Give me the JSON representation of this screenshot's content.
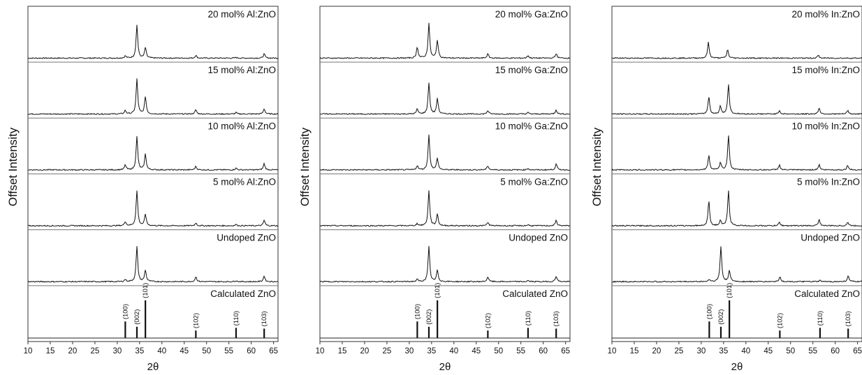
{
  "figure": {
    "shared": {
      "x_axis_label": "2θ",
      "y_axis_label": "Offset Intensity",
      "x_ticks": [
        10,
        15,
        20,
        25,
        30,
        35,
        40,
        45,
        50,
        55,
        60,
        65
      ],
      "x_range": [
        10,
        66
      ]
    },
    "panels": [
      {
        "traces": [
          {
            "label": "20 mol% Al:ZnO"
          },
          {
            "label": "15 mol% Al:ZnO"
          },
          {
            "label": "10 mol% Al:ZnO"
          },
          {
            "label": "5 mol% Al:ZnO"
          },
          {
            "label": "Undoped ZnO"
          },
          {
            "label": "Calculated ZnO"
          }
        ]
      },
      {
        "traces": [
          {
            "label": "20 mol% Ga:ZnO"
          },
          {
            "label": "15 mol% Ga:ZnO"
          },
          {
            "label": "10 mol% Ga:ZnO"
          },
          {
            "label": "5 mol% Ga:ZnO"
          },
          {
            "label": "Undoped ZnO"
          },
          {
            "label": "Calculated ZnO"
          }
        ]
      },
      {
        "traces": [
          {
            "label": "20 mol% In:ZnO"
          },
          {
            "label": "15 mol% In:ZnO"
          },
          {
            "label": "10 mol% In:ZnO"
          },
          {
            "label": "5 mol% In:ZnO"
          },
          {
            "label": "Undoped ZnO"
          },
          {
            "label": "Calculated ZnO"
          }
        ]
      }
    ]
  },
  "chart_data": [
    {
      "type": "line",
      "xlabel": "2θ",
      "ylabel": "Offset Intensity",
      "xlim": [
        10,
        66
      ],
      "x_ticks": [
        10,
        15,
        20,
        25,
        30,
        35,
        40,
        45,
        50,
        55,
        60,
        65
      ],
      "series": [
        {
          "name": "20 mol% Al:ZnO",
          "peaks": [
            [
              31.8,
              0.06
            ],
            [
              34.4,
              0.95
            ],
            [
              36.3,
              0.3
            ],
            [
              47.6,
              0.08
            ],
            [
              56.6,
              0.02
            ],
            [
              62.9,
              0.12
            ]
          ]
        },
        {
          "name": "15 mol% Al:ZnO",
          "peaks": [
            [
              31.8,
              0.1
            ],
            [
              34.4,
              1.0
            ],
            [
              36.3,
              0.5
            ],
            [
              47.6,
              0.12
            ],
            [
              56.6,
              0.04
            ],
            [
              62.9,
              0.15
            ]
          ]
        },
        {
          "name": "10 mol% Al:ZnO",
          "peaks": [
            [
              31.8,
              0.14
            ],
            [
              34.4,
              0.95
            ],
            [
              36.3,
              0.45
            ],
            [
              47.6,
              0.1
            ],
            [
              56.6,
              0.05
            ],
            [
              62.9,
              0.18
            ]
          ]
        },
        {
          "name": "5 mol% Al:ZnO",
          "peaks": [
            [
              31.8,
              0.12
            ],
            [
              34.4,
              1.0
            ],
            [
              36.3,
              0.33
            ],
            [
              47.6,
              0.08
            ],
            [
              56.6,
              0.04
            ],
            [
              62.9,
              0.16
            ]
          ]
        },
        {
          "name": "Undoped ZnO",
          "peaks": [
            [
              31.8,
              0.06
            ],
            [
              34.4,
              1.0
            ],
            [
              36.3,
              0.33
            ],
            [
              47.6,
              0.14
            ],
            [
              56.6,
              0.03
            ],
            [
              62.9,
              0.16
            ]
          ]
        },
        {
          "name": "Calculated ZnO",
          "peaks": [
            [
              31.8,
              0.44
            ],
            [
              34.4,
              0.3
            ],
            [
              36.3,
              1.0
            ],
            [
              47.6,
              0.2
            ],
            [
              56.6,
              0.27
            ],
            [
              62.9,
              0.25
            ]
          ],
          "peak_labels": [
            "(100)",
            "(002)",
            "(101)",
            "(102)",
            "(110)",
            "(103)"
          ]
        }
      ]
    },
    {
      "type": "line",
      "xlabel": "2θ",
      "ylabel": "Offset Intensity",
      "xlim": [
        10,
        66
      ],
      "x_ticks": [
        10,
        15,
        20,
        25,
        30,
        35,
        40,
        45,
        50,
        55,
        60,
        65
      ],
      "series": [
        {
          "name": "20 mol% Ga:ZnO",
          "peaks": [
            [
              31.8,
              0.32
            ],
            [
              34.4,
              1.0
            ],
            [
              36.3,
              0.52
            ],
            [
              47.6,
              0.12
            ],
            [
              56.6,
              0.07
            ],
            [
              62.9,
              0.13
            ]
          ]
        },
        {
          "name": "15 mol% Ga:ZnO",
          "peaks": [
            [
              31.8,
              0.14
            ],
            [
              34.4,
              0.9
            ],
            [
              36.3,
              0.45
            ],
            [
              47.6,
              0.1
            ],
            [
              56.6,
              0.04
            ],
            [
              62.9,
              0.12
            ]
          ]
        },
        {
          "name": "10 mol% Ga:ZnO",
          "peaks": [
            [
              31.8,
              0.12
            ],
            [
              34.4,
              1.0
            ],
            [
              36.3,
              0.33
            ],
            [
              47.6,
              0.12
            ],
            [
              56.6,
              0.04
            ],
            [
              62.9,
              0.17
            ]
          ]
        },
        {
          "name": "5 mol% Ga:ZnO",
          "peaks": [
            [
              31.8,
              0.06
            ],
            [
              34.4,
              1.0
            ],
            [
              36.3,
              0.33
            ],
            [
              47.6,
              0.1
            ],
            [
              56.6,
              0.03
            ],
            [
              62.9,
              0.15
            ]
          ]
        },
        {
          "name": "Undoped ZnO",
          "peaks": [
            [
              31.8,
              0.06
            ],
            [
              34.4,
              1.0
            ],
            [
              36.3,
              0.33
            ],
            [
              47.6,
              0.14
            ],
            [
              56.6,
              0.03
            ],
            [
              62.9,
              0.16
            ]
          ]
        },
        {
          "name": "Calculated ZnO",
          "peaks": [
            [
              31.8,
              0.44
            ],
            [
              34.4,
              0.3
            ],
            [
              36.3,
              1.0
            ],
            [
              47.6,
              0.2
            ],
            [
              56.6,
              0.27
            ],
            [
              62.9,
              0.25
            ]
          ],
          "peak_labels": [
            "(100)",
            "(002)",
            "(101)",
            "(102)",
            "(110)",
            "(103)"
          ]
        }
      ]
    },
    {
      "type": "line",
      "xlabel": "2θ",
      "ylabel": "Offset Intensity",
      "xlim": [
        10,
        66
      ],
      "x_ticks": [
        10,
        15,
        20,
        25,
        30,
        35,
        40,
        45,
        50,
        55,
        60,
        65
      ],
      "series": [
        {
          "name": "20 mol% In:ZnO",
          "peaks": [
            [
              31.6,
              0.45
            ],
            [
              35.9,
              0.24
            ],
            [
              56.2,
              0.08
            ]
          ]
        },
        {
          "name": "15 mol% In:ZnO",
          "peaks": [
            [
              31.7,
              0.5
            ],
            [
              34.3,
              0.22
            ],
            [
              36.1,
              0.85
            ],
            [
              47.5,
              0.1
            ],
            [
              56.4,
              0.18
            ],
            [
              62.8,
              0.1
            ]
          ]
        },
        {
          "name": "10 mol% In:ZnO",
          "peaks": [
            [
              31.7,
              0.42
            ],
            [
              34.3,
              0.2
            ],
            [
              36.1,
              1.0
            ],
            [
              47.5,
              0.14
            ],
            [
              56.4,
              0.15
            ],
            [
              62.8,
              0.13
            ]
          ]
        },
        {
          "name": "5 mol% In:ZnO",
          "peaks": [
            [
              31.7,
              0.7
            ],
            [
              34.3,
              0.14
            ],
            [
              36.1,
              1.0
            ],
            [
              47.5,
              0.1
            ],
            [
              56.4,
              0.18
            ],
            [
              62.8,
              0.1
            ]
          ]
        },
        {
          "name": "Undoped ZnO",
          "peaks": [
            [
              31.8,
              0.06
            ],
            [
              34.4,
              1.0
            ],
            [
              36.3,
              0.33
            ],
            [
              47.6,
              0.14
            ],
            [
              56.6,
              0.03
            ],
            [
              62.9,
              0.16
            ]
          ]
        },
        {
          "name": "Calculated ZnO",
          "peaks": [
            [
              31.8,
              0.44
            ],
            [
              34.4,
              0.3
            ],
            [
              36.3,
              1.0
            ],
            [
              47.6,
              0.2
            ],
            [
              56.6,
              0.27
            ],
            [
              62.9,
              0.25
            ]
          ],
          "peak_labels": [
            "(100)",
            "(002)",
            "(101)",
            "(102)",
            "(110)",
            "(103)"
          ]
        }
      ]
    }
  ]
}
